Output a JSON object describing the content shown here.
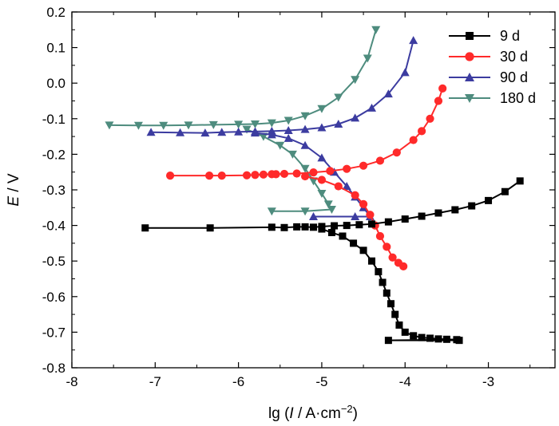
{
  "chart_data": {
    "type": "line",
    "title": "",
    "xlabel": "lg (I / A·cm⁻²)",
    "xlabel_parts": {
      "prefix": "lg (",
      "italic": "I",
      "middle": " / A·cm",
      "sup": "−2",
      "suffix": ")"
    },
    "ylabel": "E / V",
    "ylabel_parts": {
      "italic": "E",
      "rest": " / V"
    },
    "xlim": [
      -8,
      -2.2
    ],
    "ylim": [
      -0.8,
      0.2
    ],
    "xticks": [
      -8,
      -7,
      -6,
      -5,
      -4,
      -3
    ],
    "xtick_labels": [
      "-8",
      "-7",
      "-6",
      "-5",
      "-4",
      "-3"
    ],
    "yticks": [
      0.2,
      0.1,
      0.0,
      -0.1,
      -0.2,
      -0.3,
      -0.4,
      -0.5,
      -0.6,
      -0.7,
      -0.8
    ],
    "ytick_labels": [
      "0.2",
      "0.1",
      "0.0",
      "-0.1",
      "-0.2",
      "-0.3",
      "-0.4",
      "-0.5",
      "-0.6",
      "-0.7",
      "-0.8"
    ],
    "grid": false,
    "legend_position": "top-right",
    "series": [
      {
        "name": "9 d",
        "color": "#000000",
        "marker": "square",
        "points": [
          [
            -7.12,
            -0.407
          ],
          [
            -6.34,
            -0.407
          ],
          [
            -5.6,
            -0.405
          ],
          [
            -5.45,
            -0.406
          ],
          [
            -5.3,
            -0.404
          ],
          [
            -5.2,
            -0.404
          ],
          [
            -5.1,
            -0.405
          ],
          [
            -5.0,
            -0.403
          ],
          [
            -4.85,
            -0.401
          ],
          [
            -4.7,
            -0.4
          ],
          [
            -4.55,
            -0.398
          ],
          [
            -4.4,
            -0.396
          ],
          [
            -4.2,
            -0.39
          ],
          [
            -4.0,
            -0.382
          ],
          [
            -3.8,
            -0.374
          ],
          [
            -3.6,
            -0.365
          ],
          [
            -3.4,
            -0.356
          ],
          [
            -3.2,
            -0.345
          ],
          [
            -3.0,
            -0.33
          ],
          [
            -2.8,
            -0.305
          ],
          [
            -2.62,
            -0.275
          ],
          [
            -5.0,
            -0.41
          ],
          [
            -4.88,
            -0.42
          ],
          [
            -4.75,
            -0.43
          ],
          [
            -4.62,
            -0.45
          ],
          [
            -4.5,
            -0.47
          ],
          [
            -4.4,
            -0.5
          ],
          [
            -4.32,
            -0.53
          ],
          [
            -4.27,
            -0.56
          ],
          [
            -4.22,
            -0.59
          ],
          [
            -4.17,
            -0.62
          ],
          [
            -4.12,
            -0.65
          ],
          [
            -4.07,
            -0.68
          ],
          [
            -4.0,
            -0.7
          ],
          [
            -3.9,
            -0.71
          ],
          [
            -3.8,
            -0.715
          ],
          [
            -3.7,
            -0.717
          ],
          [
            -3.6,
            -0.719
          ],
          [
            -3.5,
            -0.72
          ],
          [
            -3.38,
            -0.721
          ],
          [
            -4.2,
            -0.723
          ],
          [
            -3.35,
            -0.723
          ]
        ]
      },
      {
        "name": "30 d",
        "color": "#ff2a2a",
        "marker": "circle",
        "points": [
          [
            -6.82,
            -0.26
          ],
          [
            -6.35,
            -0.26
          ],
          [
            -6.2,
            -0.26
          ],
          [
            -5.9,
            -0.259
          ],
          [
            -5.8,
            -0.258
          ],
          [
            -5.7,
            -0.257
          ],
          [
            -5.6,
            -0.256
          ],
          [
            -5.55,
            -0.256
          ],
          [
            -5.45,
            -0.255
          ],
          [
            -5.3,
            -0.254
          ],
          [
            -5.1,
            -0.251
          ],
          [
            -4.9,
            -0.247
          ],
          [
            -4.7,
            -0.241
          ],
          [
            -4.5,
            -0.232
          ],
          [
            -4.3,
            -0.218
          ],
          [
            -4.1,
            -0.195
          ],
          [
            -3.9,
            -0.16
          ],
          [
            -3.8,
            -0.135
          ],
          [
            -3.7,
            -0.1
          ],
          [
            -3.6,
            -0.05
          ],
          [
            -3.55,
            -0.015
          ],
          [
            -5.2,
            -0.262
          ],
          [
            -5.0,
            -0.272
          ],
          [
            -4.8,
            -0.29
          ],
          [
            -4.6,
            -0.315
          ],
          [
            -4.5,
            -0.34
          ],
          [
            -4.42,
            -0.37
          ],
          [
            -4.36,
            -0.4
          ],
          [
            -4.3,
            -0.43
          ],
          [
            -4.22,
            -0.46
          ],
          [
            -4.15,
            -0.49
          ],
          [
            -4.08,
            -0.505
          ],
          [
            -4.02,
            -0.515
          ]
        ]
      },
      {
        "name": "90 d",
        "color": "#3c3ca0",
        "marker": "triangle-up",
        "points": [
          [
            -7.05,
            -0.138
          ],
          [
            -6.7,
            -0.139
          ],
          [
            -6.4,
            -0.14
          ],
          [
            -6.2,
            -0.138
          ],
          [
            -6.0,
            -0.137
          ],
          [
            -5.8,
            -0.136
          ],
          [
            -5.6,
            -0.135
          ],
          [
            -5.4,
            -0.133
          ],
          [
            -5.2,
            -0.13
          ],
          [
            -5.0,
            -0.125
          ],
          [
            -4.8,
            -0.115
          ],
          [
            -4.6,
            -0.098
          ],
          [
            -4.4,
            -0.07
          ],
          [
            -4.2,
            -0.03
          ],
          [
            -4.0,
            0.03
          ],
          [
            -3.9,
            0.12
          ],
          [
            -5.8,
            -0.14
          ],
          [
            -5.6,
            -0.145
          ],
          [
            -5.4,
            -0.155
          ],
          [
            -5.2,
            -0.175
          ],
          [
            -5.0,
            -0.21
          ],
          [
            -4.85,
            -0.25
          ],
          [
            -4.7,
            -0.29
          ],
          [
            -4.6,
            -0.32
          ],
          [
            -4.5,
            -0.35
          ],
          [
            -4.42,
            -0.375
          ],
          [
            -4.6,
            -0.375
          ],
          [
            -5.1,
            -0.375
          ]
        ]
      },
      {
        "name": "180 d",
        "color": "#4e8c7e",
        "marker": "triangle-down",
        "points": [
          [
            -7.55,
            -0.118
          ],
          [
            -7.2,
            -0.119
          ],
          [
            -6.9,
            -0.119
          ],
          [
            -6.6,
            -0.118
          ],
          [
            -6.3,
            -0.117
          ],
          [
            -6.0,
            -0.116
          ],
          [
            -5.8,
            -0.115
          ],
          [
            -5.6,
            -0.112
          ],
          [
            -5.4,
            -0.105
          ],
          [
            -5.2,
            -0.092
          ],
          [
            -5.0,
            -0.072
          ],
          [
            -4.8,
            -0.04
          ],
          [
            -4.6,
            0.01
          ],
          [
            -4.45,
            0.07
          ],
          [
            -4.35,
            0.15
          ],
          [
            -5.9,
            -0.13
          ],
          [
            -5.7,
            -0.15
          ],
          [
            -5.5,
            -0.175
          ],
          [
            -5.35,
            -0.2
          ],
          [
            -5.2,
            -0.24
          ],
          [
            -5.1,
            -0.275
          ],
          [
            -5.0,
            -0.31
          ],
          [
            -4.92,
            -0.34
          ],
          [
            -4.88,
            -0.355
          ],
          [
            -5.2,
            -0.36
          ],
          [
            -5.6,
            -0.36
          ]
        ]
      }
    ]
  }
}
